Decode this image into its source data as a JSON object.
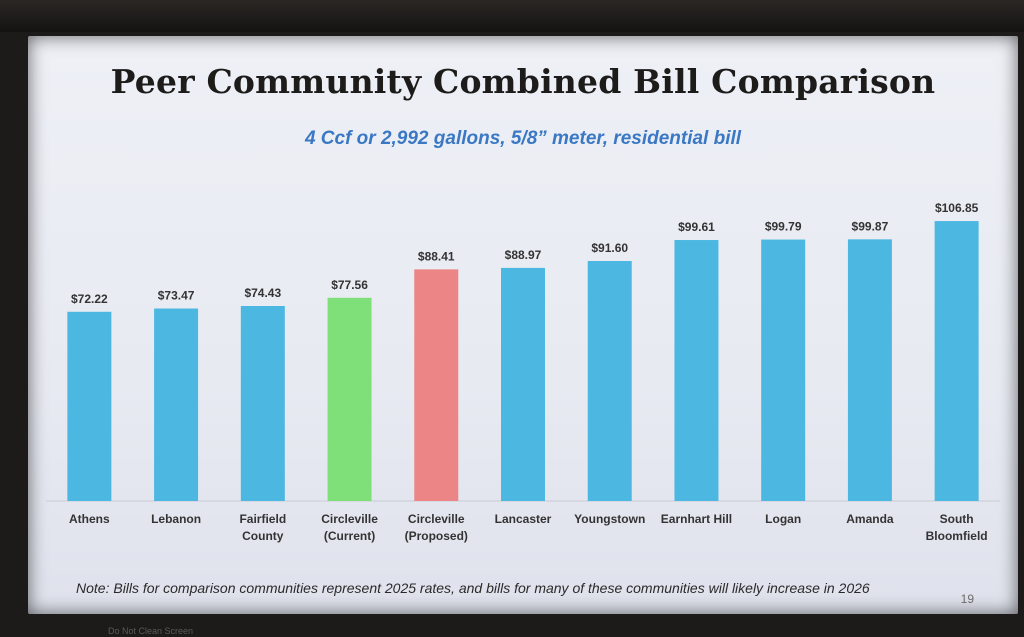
{
  "slide": {
    "title": "Peer Community Combined Bill Comparison",
    "subtitle": "4 Ccf or 2,992 gallons, 5/8” meter, residential bill",
    "note": "Note: Bills for comparison communities represent 2025 rates, and bills for many of these communities will likely increase in 2026",
    "page_number": "19"
  },
  "monitor": {
    "bottom_label": "Do Not Clean Screen"
  },
  "chart_data": {
    "type": "bar",
    "title": "Peer Community Combined Bill Comparison",
    "subtitle": "4 Ccf or 2,992 gallons, 5/8” meter, residential bill",
    "xlabel": "",
    "ylabel": "",
    "ylim": [
      0,
      110
    ],
    "grid": false,
    "legend": "none",
    "categories": [
      [
        "Athens"
      ],
      [
        "Lebanon"
      ],
      [
        "Fairfield",
        "County"
      ],
      [
        "Circleville",
        "(Current)"
      ],
      [
        "Circleville",
        "(Proposed)"
      ],
      [
        "Lancaster"
      ],
      [
        "Youngstown"
      ],
      [
        "Earnhart Hill"
      ],
      [
        "Logan"
      ],
      [
        "Amanda"
      ],
      [
        "South",
        "Bloomfield"
      ]
    ],
    "values": [
      72.22,
      73.47,
      74.43,
      77.56,
      88.41,
      88.97,
      91.6,
      99.61,
      99.79,
      99.87,
      106.85
    ],
    "value_labels": [
      "$72.22",
      "$73.47",
      "$74.43",
      "$77.56",
      "$88.41",
      "$88.97",
      "$91.60",
      "$99.61",
      "$99.79",
      "$99.87",
      "$106.85"
    ],
    "colors": [
      "#4cb8e2",
      "#4cb8e2",
      "#4cb8e2",
      "#7fe07a",
      "#ec8585",
      "#4cb8e2",
      "#4cb8e2",
      "#4cb8e2",
      "#4cb8e2",
      "#4cb8e2",
      "#4cb8e2"
    ]
  }
}
